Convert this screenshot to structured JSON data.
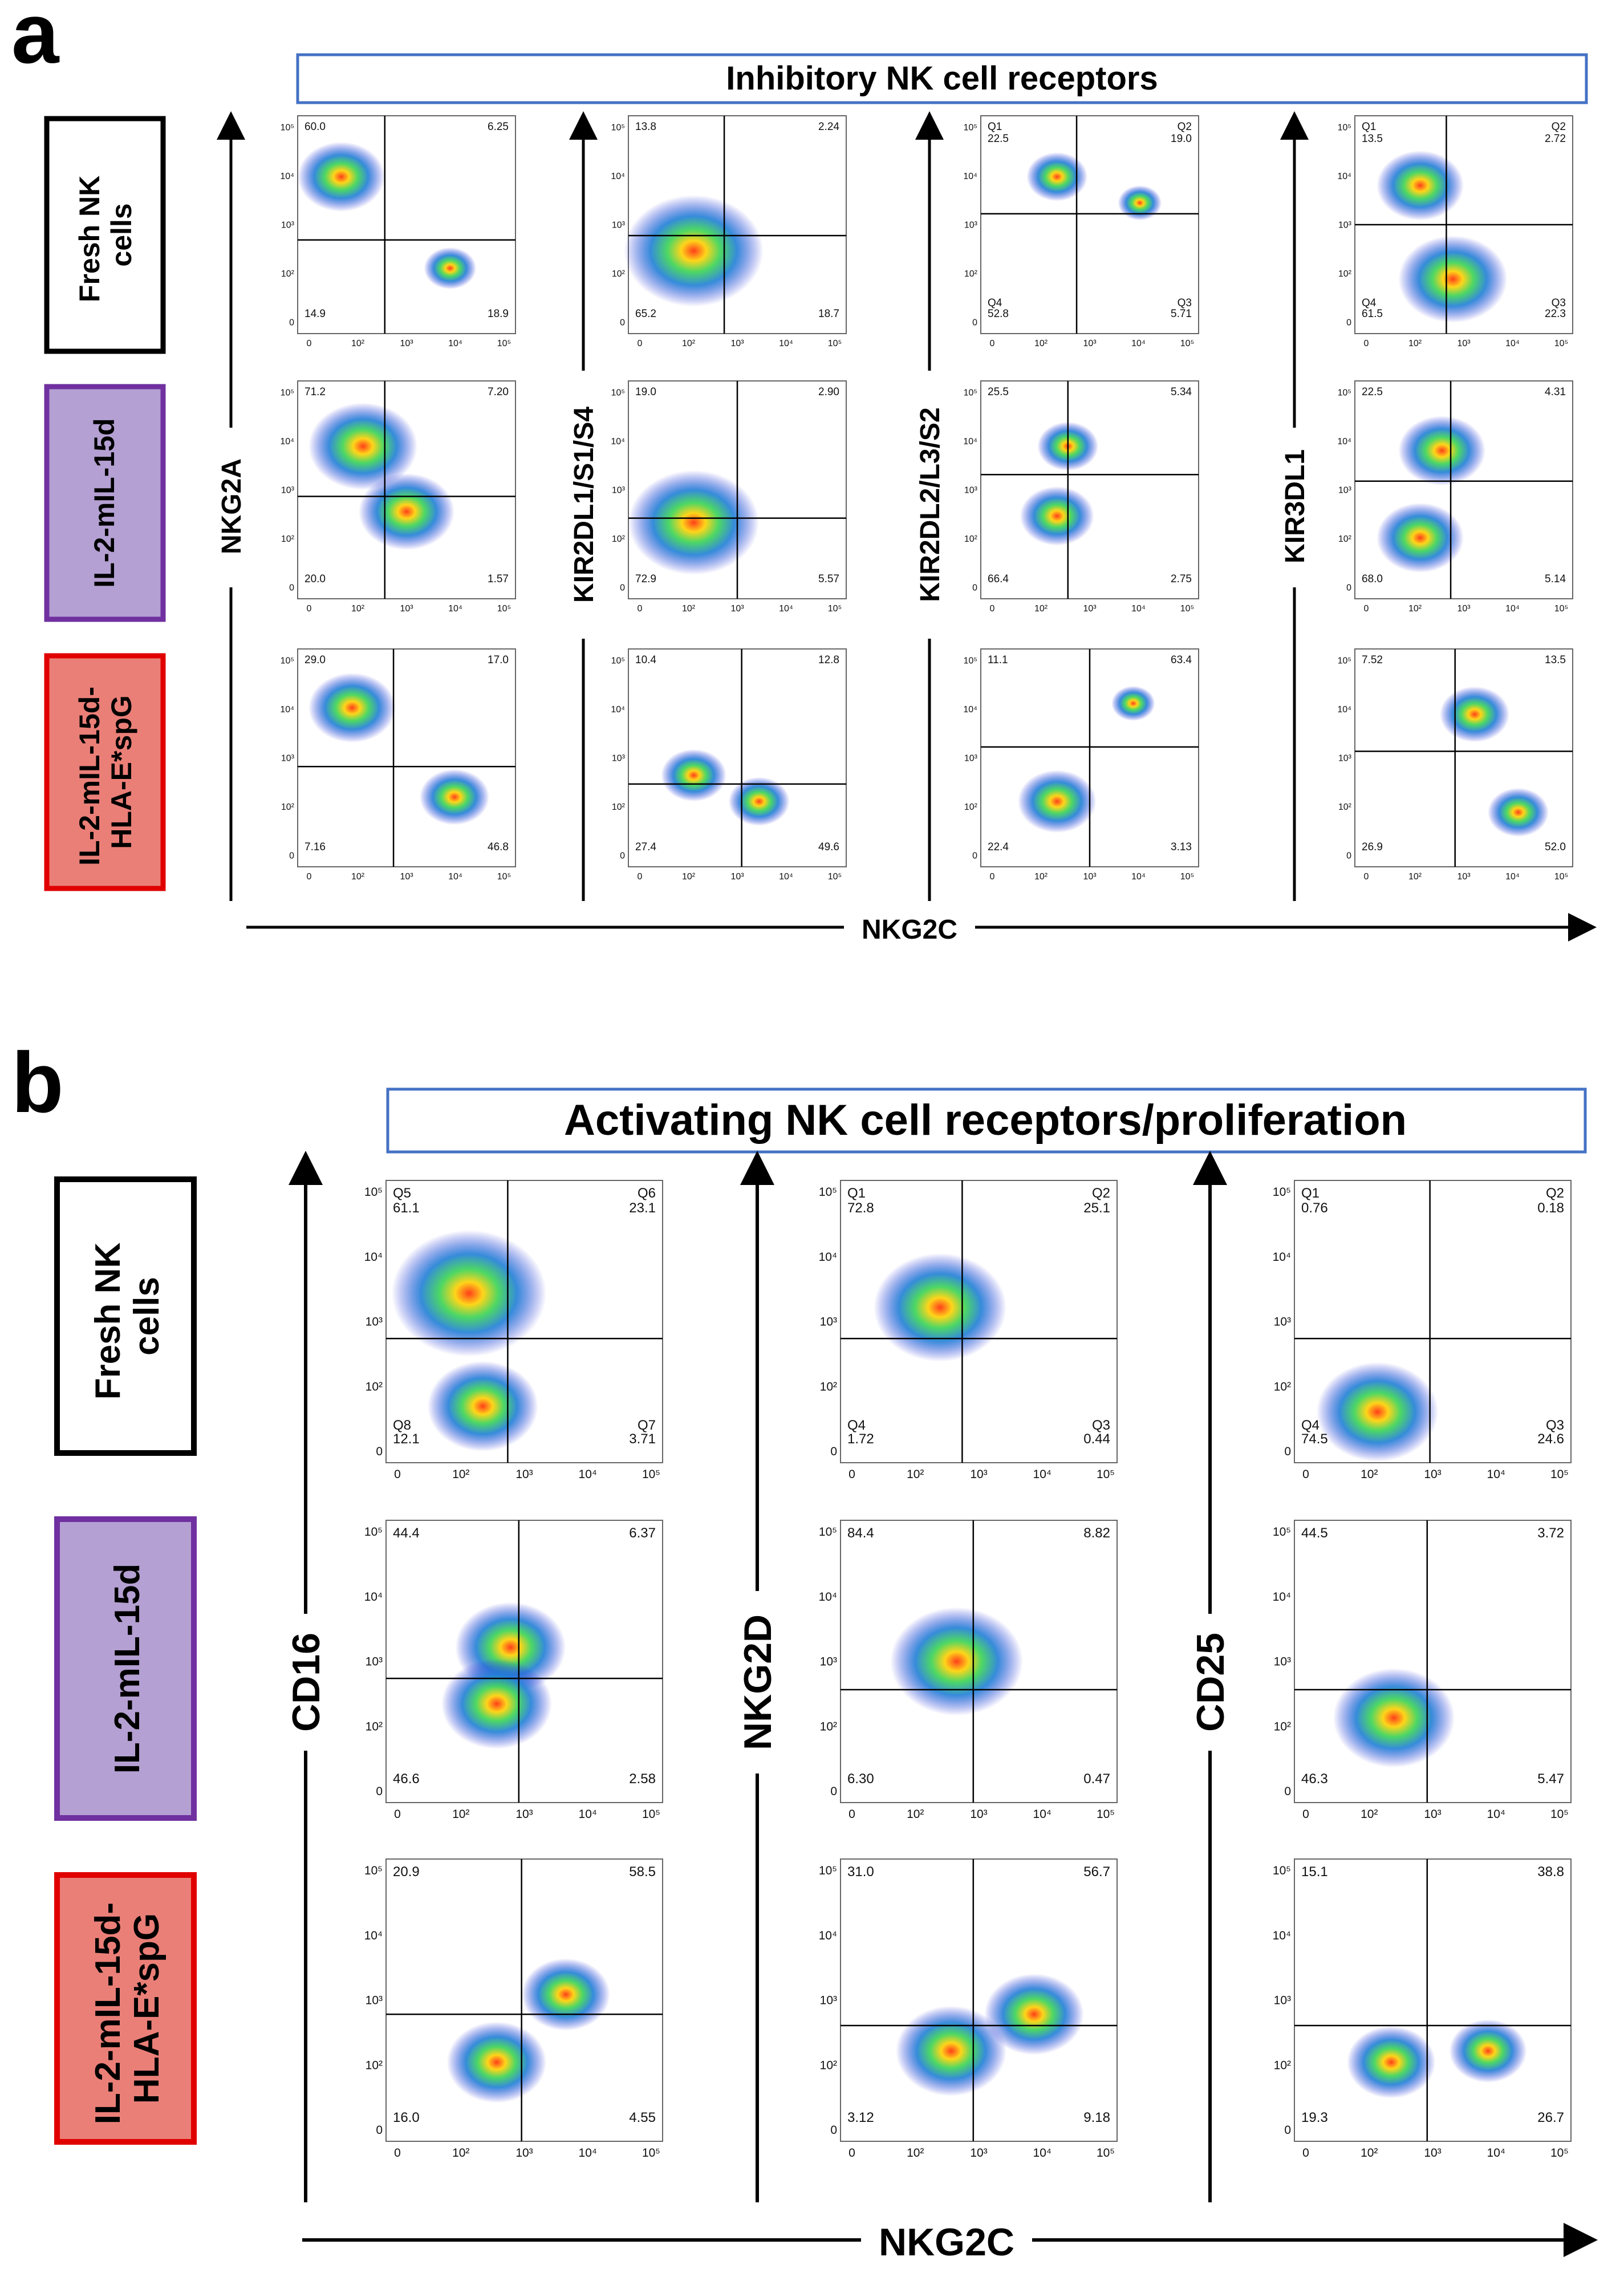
{
  "figure": {
    "panel_a_letter": "a",
    "panel_b_letter": "b",
    "panel_a_banner": "Inhibitory NK cell receptors",
    "panel_b_banner": "Activating NK cell receptors/proliferation",
    "x_axis_label": "NKG2C",
    "colors": {
      "banner_border": "#4472c4",
      "cond1_border": "#000000",
      "cond1_fill": "#ffffff",
      "cond2_border": "#7030a0",
      "cond2_fill": "#b4a0d2",
      "cond3_border": "#e00000",
      "cond3_fill": "#ea7f78"
    }
  },
  "conditions": [
    {
      "lines": [
        "Fresh NK",
        "cells"
      ]
    },
    {
      "lines": [
        "IL-2-mIL-15d"
      ]
    },
    {
      "lines": [
        "IL-2-mIL-15d-",
        "HLA-E*spG"
      ]
    }
  ],
  "chart_data": [
    {
      "type": "scatter",
      "title": "Inhibitory NK cell receptors",
      "xlabel": "NKG2C",
      "x_ticks": [
        "0",
        "10²",
        "10³",
        "10⁴",
        "10⁵"
      ],
      "y_ticks": [
        "0",
        "10²",
        "10³",
        "10⁴",
        "10⁵"
      ],
      "rows": [
        "Fresh NK cells",
        "IL-2-mIL-15d",
        "IL-2-mIL-15d-HLA-E*spG"
      ],
      "columns": [
        {
          "ylabel": "NKG2A",
          "plots": [
            {
              "ul": "60.0",
              "ur": "6.25",
              "ll": "14.9",
              "lr": "18.9"
            },
            {
              "ul": "71.2",
              "ur": "7.20",
              "ll": "20.0",
              "lr": "1.57"
            },
            {
              "ul": "29.0",
              "ur": "17.0",
              "ll": "7.16",
              "lr": "46.8"
            }
          ]
        },
        {
          "ylabel": "KIR2DL1/S1/S4",
          "plots": [
            {
              "ul": "13.8",
              "ur": "2.24",
              "ll": "65.2",
              "lr": "18.7"
            },
            {
              "ul": "19.0",
              "ur": "2.90",
              "ll": "72.9",
              "lr": "5.57"
            },
            {
              "ul": "10.4",
              "ur": "12.8",
              "ll": "27.4",
              "lr": "49.6"
            }
          ]
        },
        {
          "ylabel": "KIR2DL2/L3/S2",
          "plots": [
            {
              "ul_q": "Q1",
              "ur_q": "Q2",
              "ll_q": "Q4",
              "lr_q": "Q3",
              "ul": "22.5",
              "ur": "19.0",
              "ll": "52.8",
              "lr": "5.71"
            },
            {
              "ul": "25.5",
              "ur": "5.34",
              "ll": "66.4",
              "lr": "2.75"
            },
            {
              "ul": "11.1",
              "ur": "63.4",
              "ll": "22.4",
              "lr": "3.13"
            }
          ]
        },
        {
          "ylabel": "KIR3DL1",
          "plots": [
            {
              "ul_q": "Q1",
              "ur_q": "Q2",
              "ll_q": "Q4",
              "lr_q": "Q3",
              "ul": "13.5",
              "ur": "2.72",
              "ll": "61.5",
              "lr": "22.3"
            },
            {
              "ul": "22.5",
              "ur": "4.31",
              "ll": "68.0",
              "lr": "5.14"
            },
            {
              "ul": "7.52",
              "ur": "13.5",
              "ll": "26.9",
              "lr": "52.0"
            }
          ]
        }
      ]
    },
    {
      "type": "scatter",
      "title": "Activating NK cell receptors/proliferation",
      "xlabel": "NKG2C",
      "x_ticks": [
        "0",
        "10²",
        "10³",
        "10⁴",
        "10⁵"
      ],
      "y_ticks": [
        "0",
        "10²",
        "10³",
        "10⁴",
        "10⁵"
      ],
      "rows": [
        "Fresh NK cells",
        "IL-2-mIL-15d",
        "IL-2-mIL-15d-HLA-E*spG"
      ],
      "columns": [
        {
          "ylabel": "CD16",
          "plots": [
            {
              "ul_q": "Q5",
              "ur_q": "Q6",
              "ll_q": "Q8",
              "lr_q": "Q7",
              "ul": "61.1",
              "ur": "23.1",
              "ll": "12.1",
              "lr": "3.71"
            },
            {
              "ul": "44.4",
              "ur": "6.37",
              "ll": "46.6",
              "lr": "2.58"
            },
            {
              "ul": "20.9",
              "ur": "58.5",
              "ll": "16.0",
              "lr": "4.55"
            }
          ]
        },
        {
          "ylabel": "NKG2D",
          "plots": [
            {
              "ul_q": "Q1",
              "ur_q": "Q2",
              "ll_q": "Q4",
              "lr_q": "Q3",
              "ul": "72.8",
              "ur": "25.1",
              "ll": "1.72",
              "lr": "0.44"
            },
            {
              "ul": "84.4",
              "ur": "8.82",
              "ll": "6.30",
              "lr": "0.47"
            },
            {
              "ul": "31.0",
              "ur": "56.7",
              "ll": "3.12",
              "lr": "9.18"
            }
          ]
        },
        {
          "ylabel": "CD25",
          "plots": [
            {
              "ul_q": "Q1",
              "ur_q": "Q2",
              "ll_q": "Q4",
              "lr_q": "Q3",
              "ul": "0.76",
              "ur": "0.18",
              "ll": "74.5",
              "lr": "24.6"
            },
            {
              "ul": "44.5",
              "ur": "3.72",
              "ll": "46.3",
              "lr": "5.47"
            },
            {
              "ul": "15.1",
              "ur": "38.8",
              "ll": "19.3",
              "lr": "26.7"
            }
          ]
        }
      ]
    }
  ]
}
